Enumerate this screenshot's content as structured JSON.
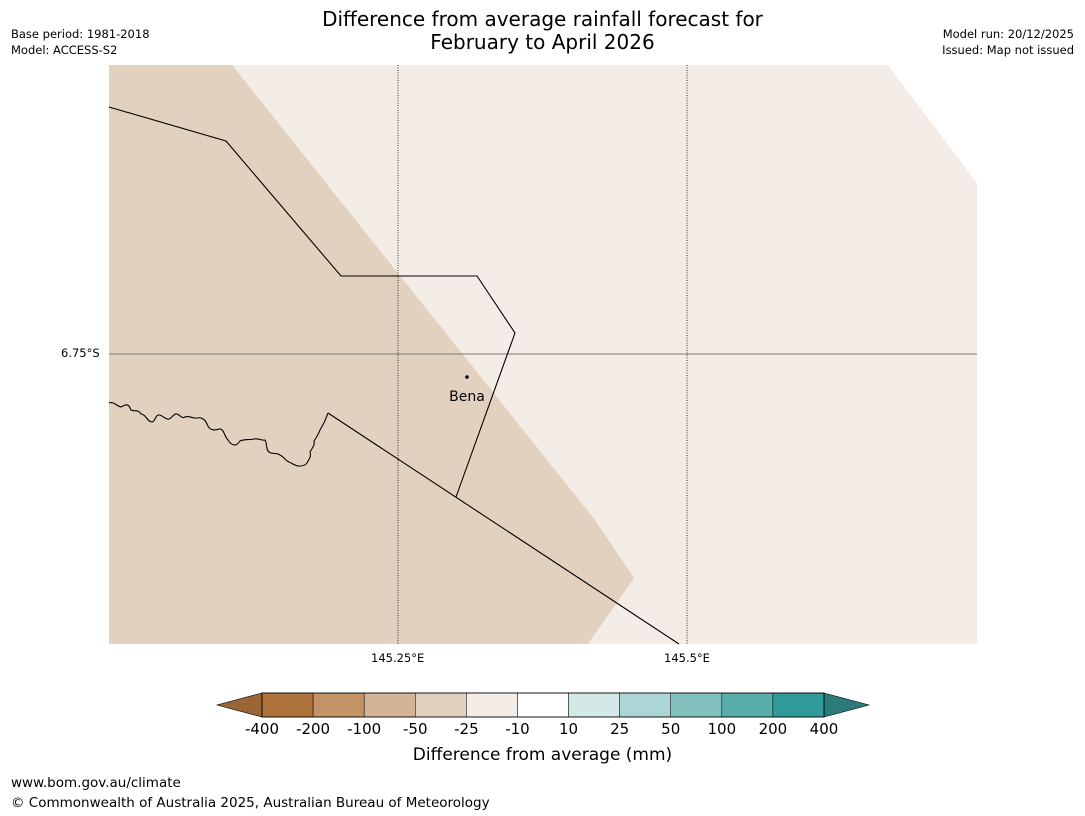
{
  "title": {
    "line1": "Difference from average rainfall forecast for",
    "line2": "February to April 2026"
  },
  "meta": {
    "base_period": "Base period: 1981-2018",
    "model": "Model: ACCESS-S2",
    "model_run": "Model run: 20/12/2025",
    "issued": "Issued: Map not issued"
  },
  "map": {
    "lat_label": "6.75°S",
    "lon_labels": [
      "145.25°E",
      "145.5°E"
    ],
    "place_name": "Bena",
    "region_colors": {
      "west_category": "-25 to -50 mm",
      "west": "#e3d1c0",
      "east_category": "-10 to -25 mm",
      "east": "#f4ece6"
    }
  },
  "colorbar": {
    "title": "Difference from average (mm)",
    "ticks": [
      "-400",
      "-200",
      "-100",
      "-50",
      "-25",
      "-10",
      "10",
      "25",
      "50",
      "100",
      "200",
      "400"
    ],
    "low_extend_color": "#9b6535",
    "high_extend_color": "#2b7b7a",
    "colors": [
      "#ad733b",
      "#c29366",
      "#d4b496",
      "#e3d1c0",
      "#f4ece6",
      "#ffffff",
      "#d5e8e8",
      "#acd6d6",
      "#83c1be",
      "#59adab",
      "#309b98"
    ]
  },
  "footer": {
    "url": "www.bom.gov.au/climate",
    "copyright": "© Commonwealth of Australia 2025, Australian Bureau of Meteorology"
  }
}
